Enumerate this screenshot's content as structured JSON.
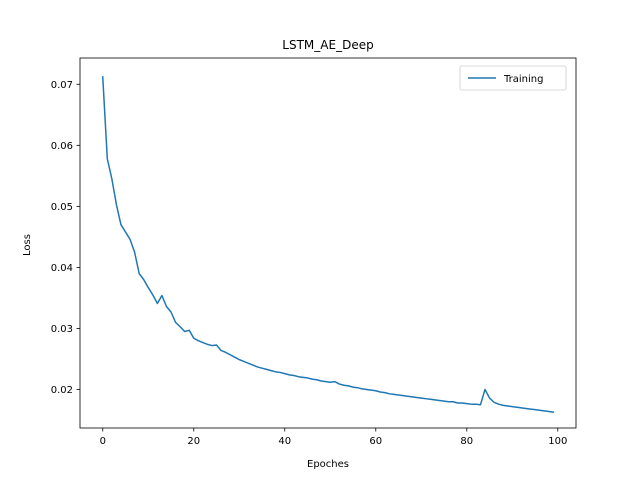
{
  "chart_data": {
    "type": "line",
    "title": "LSTM_AE_Deep",
    "xlabel": "Epoches",
    "ylabel": "Loss",
    "xlim": [
      -5,
      104
    ],
    "ylim": [
      0.0137,
      0.0743
    ],
    "x_ticks": [
      0,
      20,
      40,
      60,
      80,
      100
    ],
    "y_ticks": [
      0.02,
      0.03,
      0.04,
      0.05,
      0.06,
      0.07
    ],
    "x_tick_labels": [
      "0",
      "20",
      "40",
      "60",
      "80",
      "100"
    ],
    "y_tick_labels": [
      "0.02",
      "0.03",
      "0.04",
      "0.05",
      "0.06",
      "0.07"
    ],
    "legend_position": "top-right",
    "grid": false,
    "series": [
      {
        "name": "Training",
        "color": "#1f77b4",
        "x": [
          0,
          1,
          2,
          3,
          4,
          5,
          6,
          7,
          8,
          9,
          10,
          11,
          12,
          13,
          14,
          15,
          16,
          17,
          18,
          19,
          20,
          21,
          22,
          23,
          24,
          25,
          26,
          27,
          28,
          29,
          30,
          31,
          32,
          33,
          34,
          35,
          36,
          37,
          38,
          39,
          40,
          41,
          42,
          43,
          44,
          45,
          46,
          47,
          48,
          49,
          50,
          51,
          52,
          53,
          54,
          55,
          56,
          57,
          58,
          59,
          60,
          61,
          62,
          63,
          64,
          65,
          66,
          67,
          68,
          69,
          70,
          71,
          72,
          73,
          74,
          75,
          76,
          77,
          78,
          79,
          80,
          81,
          82,
          83,
          84,
          85,
          86,
          87,
          88,
          89,
          90,
          91,
          92,
          93,
          94,
          95,
          96,
          97,
          98,
          99
        ],
        "values": [
          0.0712,
          0.0578,
          0.0545,
          0.0503,
          0.047,
          0.0458,
          0.0446,
          0.0425,
          0.039,
          0.038,
          0.0367,
          0.0355,
          0.0341,
          0.0354,
          0.0336,
          0.0327,
          0.031,
          0.0303,
          0.0295,
          0.0297,
          0.0284,
          0.028,
          0.0277,
          0.0274,
          0.0272,
          0.0273,
          0.0264,
          0.0261,
          0.0257,
          0.0253,
          0.0249,
          0.0246,
          0.0243,
          0.024,
          0.0237,
          0.0235,
          0.0233,
          0.0231,
          0.0229,
          0.0228,
          0.0226,
          0.0224,
          0.0223,
          0.0221,
          0.022,
          0.0219,
          0.0217,
          0.0216,
          0.0214,
          0.0213,
          0.0212,
          0.0213,
          0.0209,
          0.0207,
          0.0206,
          0.0204,
          0.0203,
          0.0201,
          0.02,
          0.0199,
          0.0198,
          0.0196,
          0.0195,
          0.0193,
          0.0192,
          0.0191,
          0.019,
          0.0189,
          0.0188,
          0.0187,
          0.0186,
          0.0185,
          0.0184,
          0.0183,
          0.0182,
          0.0181,
          0.018,
          0.018,
          0.0178,
          0.0178,
          0.0177,
          0.0176,
          0.0176,
          0.0175,
          0.02,
          0.0186,
          0.0179,
          0.0176,
          0.0174,
          0.0173,
          0.0172,
          0.0171,
          0.017,
          0.0169,
          0.0168,
          0.0167,
          0.0166,
          0.0165,
          0.0164,
          0.0163
        ]
      }
    ]
  }
}
